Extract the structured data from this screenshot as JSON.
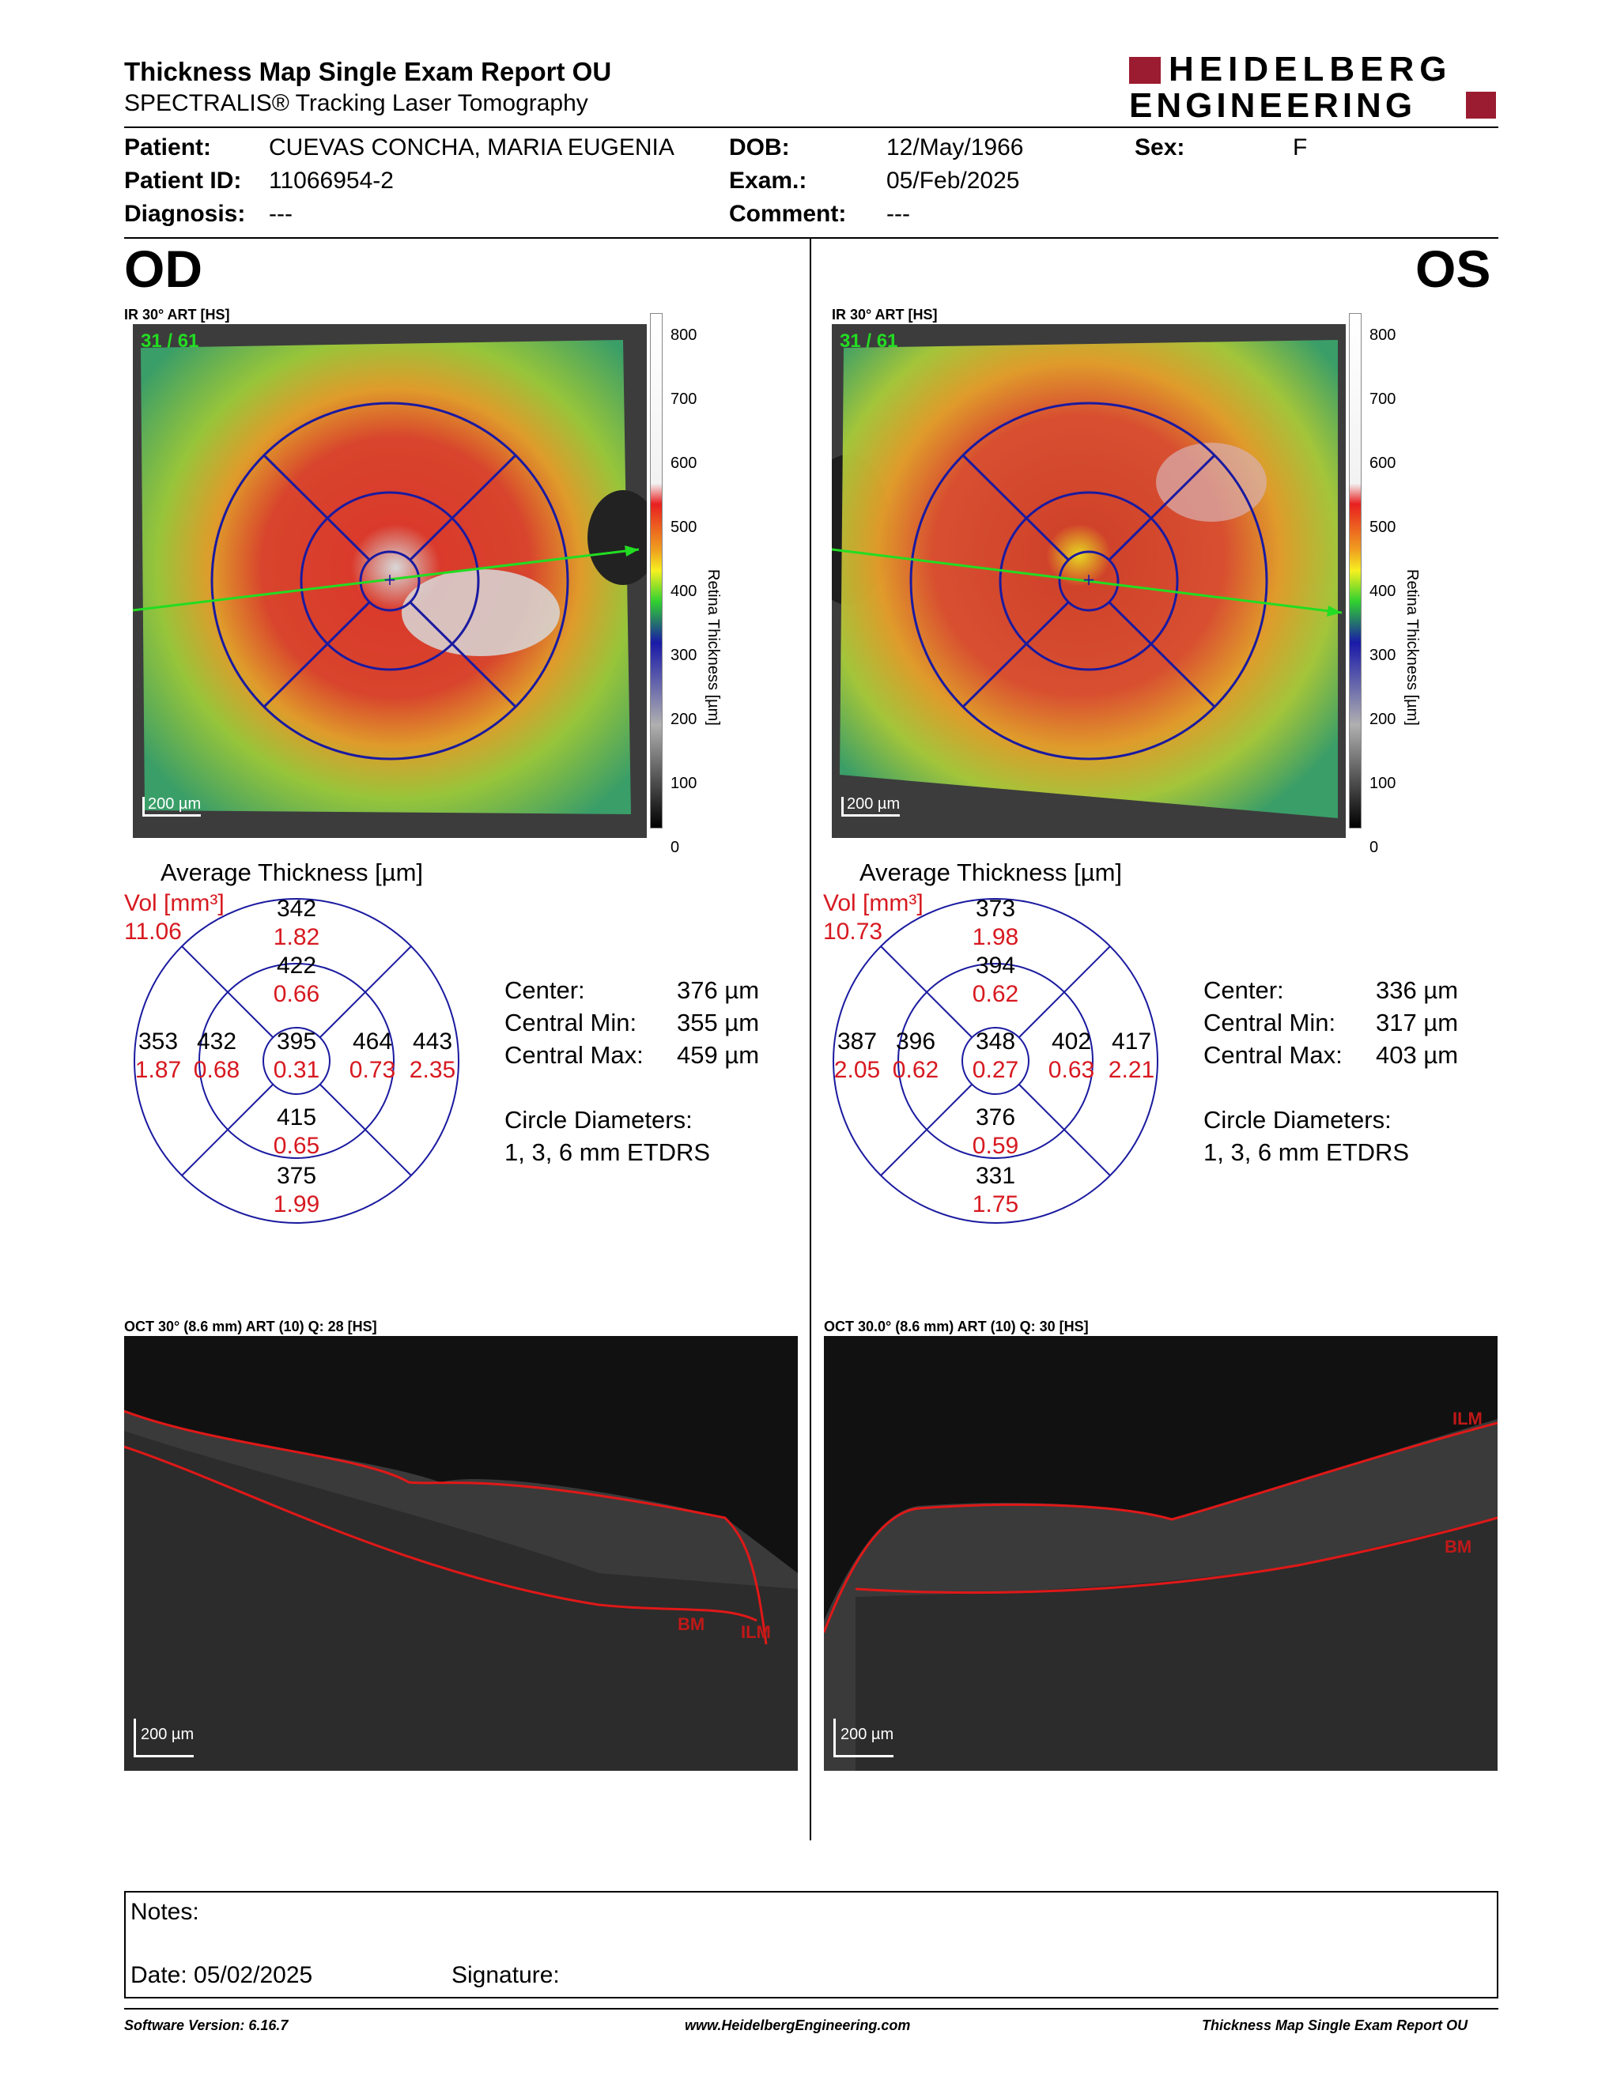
{
  "header": {
    "title": "Thickness Map Single Exam Report OU",
    "subtitle": "SPECTRALIS® Tracking Laser Tomography",
    "logo_line1": "HEIDELBERG",
    "logo_line2": "ENGINEERING"
  },
  "patient": {
    "patient_label": "Patient:",
    "patient_value": "CUEVAS CONCHA, MARIA EUGENIA",
    "dob_label": "DOB:",
    "dob_value": "12/May/1966",
    "sex_label": "Sex:",
    "sex_value": "F",
    "id_label": "Patient ID:",
    "id_value": "11066954-2",
    "exam_label": "Exam.:",
    "exam_value": "05/Feb/2025",
    "diagnosis_label": "Diagnosis:",
    "diagnosis_value": "---",
    "comment_label": "Comment:",
    "comment_value": "---"
  },
  "colorbar": {
    "ticks": [
      "800",
      "700",
      "600",
      "500",
      "400",
      "300",
      "200",
      "100",
      "0"
    ],
    "label": "Retina  Thickness [µm]"
  },
  "od": {
    "eye": "OD",
    "ir_label": "IR 30° ART [HS]",
    "frames": "31 / 61",
    "scale": "200 µm",
    "avg_title": "Average Thickness [µm]",
    "vol_label": "Vol [mm³]",
    "vol_value": "11.06",
    "etdrs": {
      "outer_sup": [
        "342",
        "1.82"
      ],
      "inner_sup": [
        "422",
        "0.66"
      ],
      "outer_temp": [
        "353",
        "1.87"
      ],
      "inner_temp": [
        "432",
        "0.68"
      ],
      "center": [
        "395",
        "0.31"
      ],
      "inner_nasal": [
        "464",
        "0.73"
      ],
      "outer_nasal": [
        "443",
        "2.35"
      ],
      "inner_inf": [
        "415",
        "0.65"
      ],
      "outer_inf": [
        "375",
        "1.99"
      ]
    },
    "center_label": "Center:",
    "center_value": "376 µm",
    "cmin_label": "Central Min:",
    "cmin_value": "355 µm",
    "cmax_label": "Central Max:",
    "cmax_value": "459 µm",
    "circle_label": "Circle Diameters:",
    "circle_value": "1, 3, 6 mm ETDRS",
    "oct_label": "OCT 30° (8.6 mm) ART (10) Q: 28 [HS]",
    "oct_scale": "200 µm",
    "ilm": "ILM",
    "bm": "BM"
  },
  "os": {
    "eye": "OS",
    "ir_label": "IR 30° ART [HS]",
    "frames": "31 / 61",
    "scale": "200 µm",
    "avg_title": "Average Thickness [µm]",
    "vol_label": "Vol [mm³]",
    "vol_value": "10.73",
    "etdrs": {
      "outer_sup": [
        "373",
        "1.98"
      ],
      "inner_sup": [
        "394",
        "0.62"
      ],
      "outer_temp": [
        "387",
        "2.05"
      ],
      "inner_temp": [
        "396",
        "0.62"
      ],
      "center": [
        "348",
        "0.27"
      ],
      "inner_nasal": [
        "402",
        "0.63"
      ],
      "outer_nasal": [
        "417",
        "2.21"
      ],
      "inner_inf": [
        "376",
        "0.59"
      ],
      "outer_inf": [
        "331",
        "1.75"
      ]
    },
    "center_label": "Center:",
    "center_value": "336 µm",
    "cmin_label": "Central Min:",
    "cmin_value": "317 µm",
    "cmax_label": "Central Max:",
    "cmax_value": "403 µm",
    "circle_label": "Circle Diameters:",
    "circle_value": "1, 3, 6 mm ETDRS",
    "oct_label": "OCT 30.0° (8.6 mm) ART (10) Q: 30 [HS]",
    "oct_scale": "200 µm",
    "ilm": "ILM",
    "bm": "BM"
  },
  "notes": {
    "notes_label": "Notes:",
    "date_label": "Date: 05/02/2025",
    "signature_label": "Signature:"
  },
  "footer": {
    "software": "Software Version: 6.16.7",
    "website": "www.HeidelbergEngineering.com",
    "report": "Thickness Map Single Exam Report OU"
  }
}
